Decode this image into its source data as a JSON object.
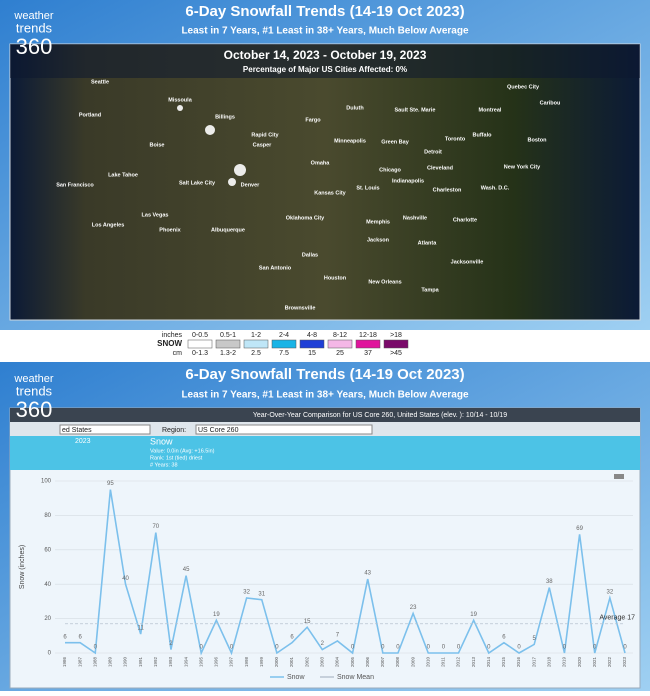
{
  "logo": {
    "line1": "weather",
    "line2": "trends",
    "line3": "360"
  },
  "top": {
    "title": "6-Day Snowfall Trends (14-19 Oct 2023)",
    "subtitle": "Least in 7 Years, #1 Least in 38+ Years, Much Below Average"
  },
  "map": {
    "heading": "October 14, 2023 - October 19, 2023",
    "subheading": "Percentage of Major US Cities Affected:  0%",
    "cities": [
      "Seattle",
      "Missoula",
      "Billings",
      "Portland",
      "Quebec City",
      "Caribou",
      "Duluth",
      "Sault Ste. Marie",
      "Montreal",
      "Fargo",
      "Minneapolis",
      "Green Bay",
      "Toronto",
      "Buffalo",
      "Boston",
      "Rapid City",
      "Boise",
      "Casper",
      "Detroit",
      "Chicago",
      "Cleveland",
      "New York City",
      "Omaha",
      "Indianapolis",
      "San Francisco",
      "Lake Tahoe",
      "Salt Lake City",
      "Denver",
      "Kansas City",
      "St. Louis",
      "Charleston",
      "Wash. D.C.",
      "Las Vegas",
      "Oklahoma City",
      "Memphis",
      "Nashville",
      "Charlotte",
      "Los Angeles",
      "Phoenix",
      "Albuquerque",
      "Dallas",
      "Jackson",
      "Atlanta",
      "San Antonio",
      "Houston",
      "New Orleans",
      "Jacksonville",
      "Tampa",
      "Brownsville"
    ]
  },
  "legend": {
    "inches_label": "inches",
    "snow_label": "SNOW",
    "cm_label": "cm",
    "inches": [
      "0-0.5",
      "0.5-1",
      "1-2",
      "2-4",
      "4-8",
      "8-12",
      "12-18",
      ">18"
    ],
    "cm": [
      "0-1.3",
      "1.3-2",
      "2.5",
      "7.5",
      "15",
      "25",
      "37",
      ">45"
    ],
    "colors": [
      "#ffffff",
      "#c8c8c8",
      "#bfe6f7",
      "#19b4e6",
      "#1f3fd6",
      "#f4b7e6",
      "#e0149c",
      "#7a0a6a"
    ]
  },
  "bottom": {
    "title": "6-Day Snowfall Trends (14-19 Oct 2023)",
    "subtitle": "Least in 7 Years, #1 Least in 38+ Years, Much Below Average",
    "header": "Year-Over-Year Comparison for US Core 260, United States (elev. ): 10/14 - 10/19",
    "country_select": "ed States",
    "region_label": "Region:",
    "region_select": "US Core 260",
    "info_year": "2023",
    "info_title": "Snow",
    "info_lines": [
      "Value: 0.0in (Avg: +16.5in)",
      "Rank: 1st (tied) driest",
      "# Years: 38"
    ]
  },
  "chart_data": {
    "type": "line",
    "y_label": "Snow (inches)",
    "categories": [
      "1986",
      "1987",
      "1988",
      "1989",
      "1990",
      "1991",
      "1992",
      "1993",
      "1994",
      "1995",
      "1996",
      "1997",
      "1998",
      "1999",
      "2000",
      "2001",
      "2002",
      "2003",
      "2004",
      "2005",
      "2006",
      "2007",
      "2008",
      "2009",
      "2010",
      "2011",
      "2012",
      "2013",
      "2014",
      "2015",
      "2016",
      "2017",
      "2018",
      "2019",
      "2020",
      "2021",
      "2022",
      "2023"
    ],
    "series": [
      {
        "name": "Snow",
        "color": "#7cc0ec",
        "values": [
          6,
          6,
          0,
          95,
          40,
          11,
          70,
          2,
          45,
          0,
          19,
          0,
          32,
          31,
          0,
          6,
          15,
          2,
          7,
          0,
          43,
          0,
          0,
          23,
          0,
          0,
          0,
          19,
          0,
          6,
          0,
          5,
          38,
          0,
          69,
          0,
          32,
          0
        ]
      }
    ],
    "mean": {
      "name": "Snow Mean",
      "value": 17,
      "label": "Average 17",
      "color": "#b8c4d0"
    },
    "ylim": [
      0,
      100
    ],
    "yticks": [
      0,
      20,
      40,
      60,
      80,
      100
    ],
    "grid": true
  }
}
